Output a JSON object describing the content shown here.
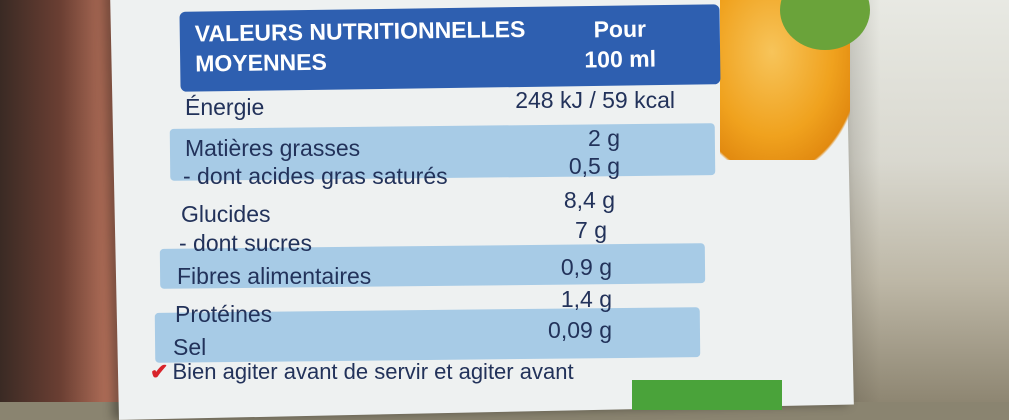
{
  "header": {
    "title_line1": "VALEURS NUTRITIONNELLES",
    "title_line2": "MOYENNES",
    "unit_line1": "Pour",
    "unit_line2": "100 ml"
  },
  "rows": [
    {
      "label": "Énergie",
      "value": "248 kJ / 59 kcal"
    },
    {
      "label": "Matières grasses",
      "value": "2 g"
    },
    {
      "label": "- dont acides gras saturés",
      "value": "0,5 g"
    },
    {
      "label": "Glucides",
      "value": "8,4 g"
    },
    {
      "label": "- dont sucres",
      "value": "7 g"
    },
    {
      "label": "Fibres alimentaires",
      "value": "0,9 g"
    },
    {
      "label": "Protéines",
      "value": "1,4 g"
    },
    {
      "label": "Sel",
      "value": "0,09 g"
    }
  ],
  "footer_note": "Bien agiter avant de servir et agiter avant",
  "colors": {
    "header_blue": "#2e5fb0",
    "stripe_blue": "#a7cbe6",
    "text_navy": "#22325a",
    "check_red": "#d8232a"
  },
  "icons": [
    "check-icon"
  ]
}
